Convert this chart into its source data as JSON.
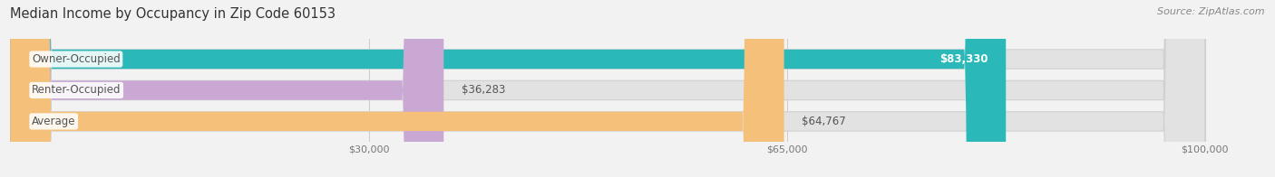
{
  "title": "Median Income by Occupancy in Zip Code 60153",
  "source": "Source: ZipAtlas.com",
  "categories": [
    "Owner-Occupied",
    "Renter-Occupied",
    "Average"
  ],
  "values": [
    83330,
    36283,
    64767
  ],
  "bar_colors": [
    "#2ab8b8",
    "#c9a8d4",
    "#f5c07a"
  ],
  "bg_color": "#f2f2f2",
  "bar_bg_color": "#e2e2e2",
  "xlim": [
    0,
    105000
  ],
  "xticks": [
    30000,
    65000,
    100000
  ],
  "xtick_labels": [
    "$30,000",
    "$65,000",
    "$100,000"
  ],
  "title_fontsize": 10.5,
  "source_fontsize": 8,
  "bar_height": 0.62,
  "value_labels": [
    "$83,330",
    "$36,283",
    "$64,767"
  ],
  "value_inside": [
    true,
    false,
    false
  ],
  "label_fontsize": 8.5,
  "cat_fontsize": 8.5,
  "rounding_size": 3500,
  "grid_color": "#cccccc"
}
